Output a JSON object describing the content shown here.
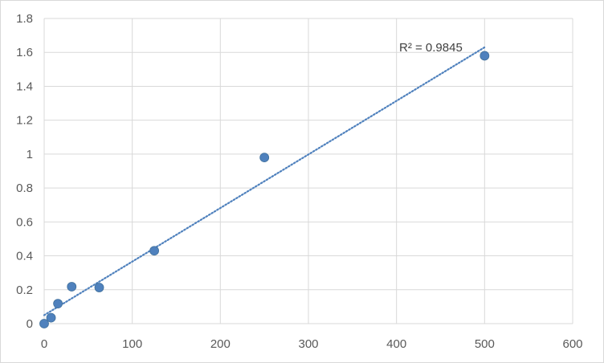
{
  "chart_data": {
    "type": "scatter",
    "title": "",
    "xlabel": "",
    "ylabel": "",
    "xlim": [
      0,
      600
    ],
    "ylim": [
      0,
      1.8
    ],
    "x_ticks": [
      0,
      100,
      200,
      300,
      400,
      500,
      600
    ],
    "y_ticks": [
      0,
      0.2,
      0.4,
      0.6,
      0.8,
      1,
      1.2,
      1.4,
      1.6,
      1.8
    ],
    "x_tick_labels": [
      "0",
      "100",
      "200",
      "300",
      "400",
      "500",
      "600"
    ],
    "y_tick_labels": [
      "0",
      "0.2",
      "0.4",
      "0.6",
      "0.8",
      "1",
      "1.2",
      "1.4",
      "1.6",
      "1.8"
    ],
    "grid": true,
    "legend": "none",
    "series": [
      {
        "x": [
          0,
          7.8,
          15.6,
          31.25,
          62.5,
          125,
          250,
          500
        ],
        "y": [
          0.0,
          0.035,
          0.118,
          0.218,
          0.213,
          0.43,
          0.98,
          1.58
        ]
      }
    ],
    "trendline": {
      "type": "linear",
      "x_range": [
        0,
        500
      ],
      "y_range": [
        0.05,
        1.63
      ],
      "annotation": "R² = 0.9845"
    },
    "colors": {
      "marker": "#4f81bd",
      "trendline": "#4f81bd",
      "grid": "#d9d9d9",
      "tick_text": "#595959"
    }
  }
}
